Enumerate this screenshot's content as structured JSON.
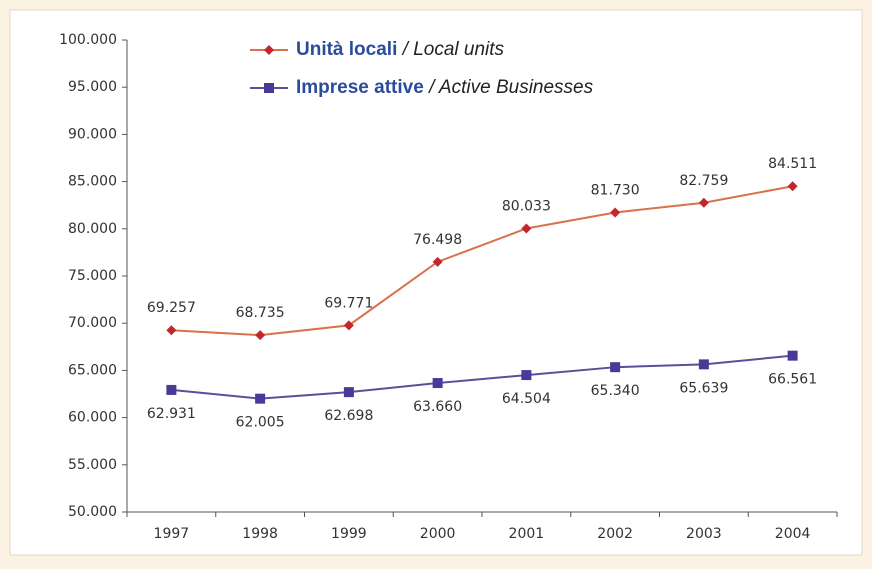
{
  "chart_data": {
    "type": "line",
    "categories": [
      "1997",
      "1998",
      "1999",
      "2000",
      "2001",
      "2002",
      "2003",
      "2004"
    ],
    "series": [
      {
        "name": "Unità locali / Local units",
        "color": "#d9714d",
        "marker_color": "#c1272d",
        "marker": "diamond",
        "values": [
          69257,
          68735,
          69771,
          76498,
          80033,
          81730,
          82759,
          84511
        ],
        "value_labels": [
          "69.257",
          "68.735",
          "69.771",
          "76.498",
          "80.033",
          "81.730",
          "82.759",
          "84.511"
        ]
      },
      {
        "name": "Imprese attive / Active Businesses",
        "color": "#5b4e9a",
        "marker_color": "#4a3a98",
        "marker": "square",
        "values": [
          62931,
          62005,
          62698,
          63660,
          64504,
          65340,
          65639,
          66561
        ],
        "value_labels": [
          "62.931",
          "62.005",
          "62.698",
          "63.660",
          "64.504",
          "65.340",
          "65.639",
          "66.561"
        ]
      }
    ],
    "ylim": [
      50000,
      100000
    ],
    "yticks": [
      {
        "value": 50000,
        "label": "50.000"
      },
      {
        "value": 55000,
        "label": "55.000"
      },
      {
        "value": 60000,
        "label": "60.000"
      },
      {
        "value": 65000,
        "label": "65.000"
      },
      {
        "value": 70000,
        "label": "70.000"
      },
      {
        "value": 75000,
        "label": "75.000"
      },
      {
        "value": 80000,
        "label": "80.000"
      },
      {
        "value": 85000,
        "label": "85.000"
      },
      {
        "value": 90000,
        "label": "90.000"
      },
      {
        "value": 95000,
        "label": "95.000"
      },
      {
        "value": 100000,
        "label": "100.000"
      }
    ]
  }
}
